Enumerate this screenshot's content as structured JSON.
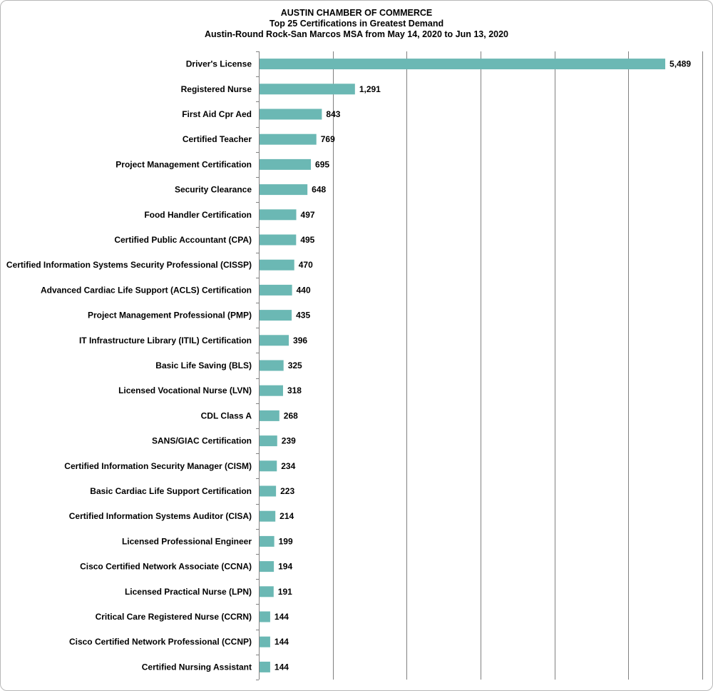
{
  "chart_data": {
    "type": "bar",
    "orientation": "horizontal",
    "title": "AUSTIN CHAMBER  OF COMMERCE",
    "subtitle": "Top 25 Certifications  in Greatest Demand",
    "subtitle2": "Austin-Round  Rock-San Marcos MSA from May 14, 2020 to Jun 13, 2020",
    "xlabel": "",
    "ylabel": "",
    "xlim": [
      0,
      6000
    ],
    "grid": true,
    "legend": "none",
    "bar_color": "#6bb8b4",
    "categories": [
      "Driver's License",
      "Registered Nurse",
      "First Aid Cpr Aed",
      "Certified Teacher",
      "Project Management Certification",
      "Security Clearance",
      "Food Handler Certification",
      "Certified Public Accountant (CPA)",
      "Certified Information Systems Security Professional (CISSP)",
      "Advanced Cardiac Life Support (ACLS) Certification",
      "Project Management Professional (PMP)",
      "IT Infrastructure Library (ITIL) Certification",
      "Basic Life Saving (BLS)",
      "Licensed Vocational Nurse (LVN)",
      "CDL Class A",
      "SANS/GIAC Certification",
      "Certified Information Security Manager (CISM)",
      "Basic Cardiac Life Support Certification",
      "Certified Information Systems Auditor (CISA)",
      "Licensed Professional Engineer",
      "Cisco Certified Network Associate (CCNA)",
      "Licensed Practical Nurse (LPN)",
      "Critical Care Registered Nurse (CCRN)",
      "Cisco Certified Network Professional (CCNP)",
      "Certified Nursing Assistant"
    ],
    "values": [
      5489,
      1291,
      843,
      769,
      695,
      648,
      497,
      495,
      470,
      440,
      435,
      396,
      325,
      318,
      268,
      239,
      234,
      223,
      214,
      199,
      194,
      191,
      144,
      144,
      144
    ],
    "value_labels": [
      "5,489",
      "1,291",
      "843",
      "769",
      "695",
      "648",
      "497",
      "495",
      "470",
      "440",
      "435",
      "396",
      "325",
      "318",
      "268",
      "239",
      "234",
      "223",
      "214",
      "199",
      "194",
      "191",
      "144",
      "144",
      "144"
    ]
  }
}
